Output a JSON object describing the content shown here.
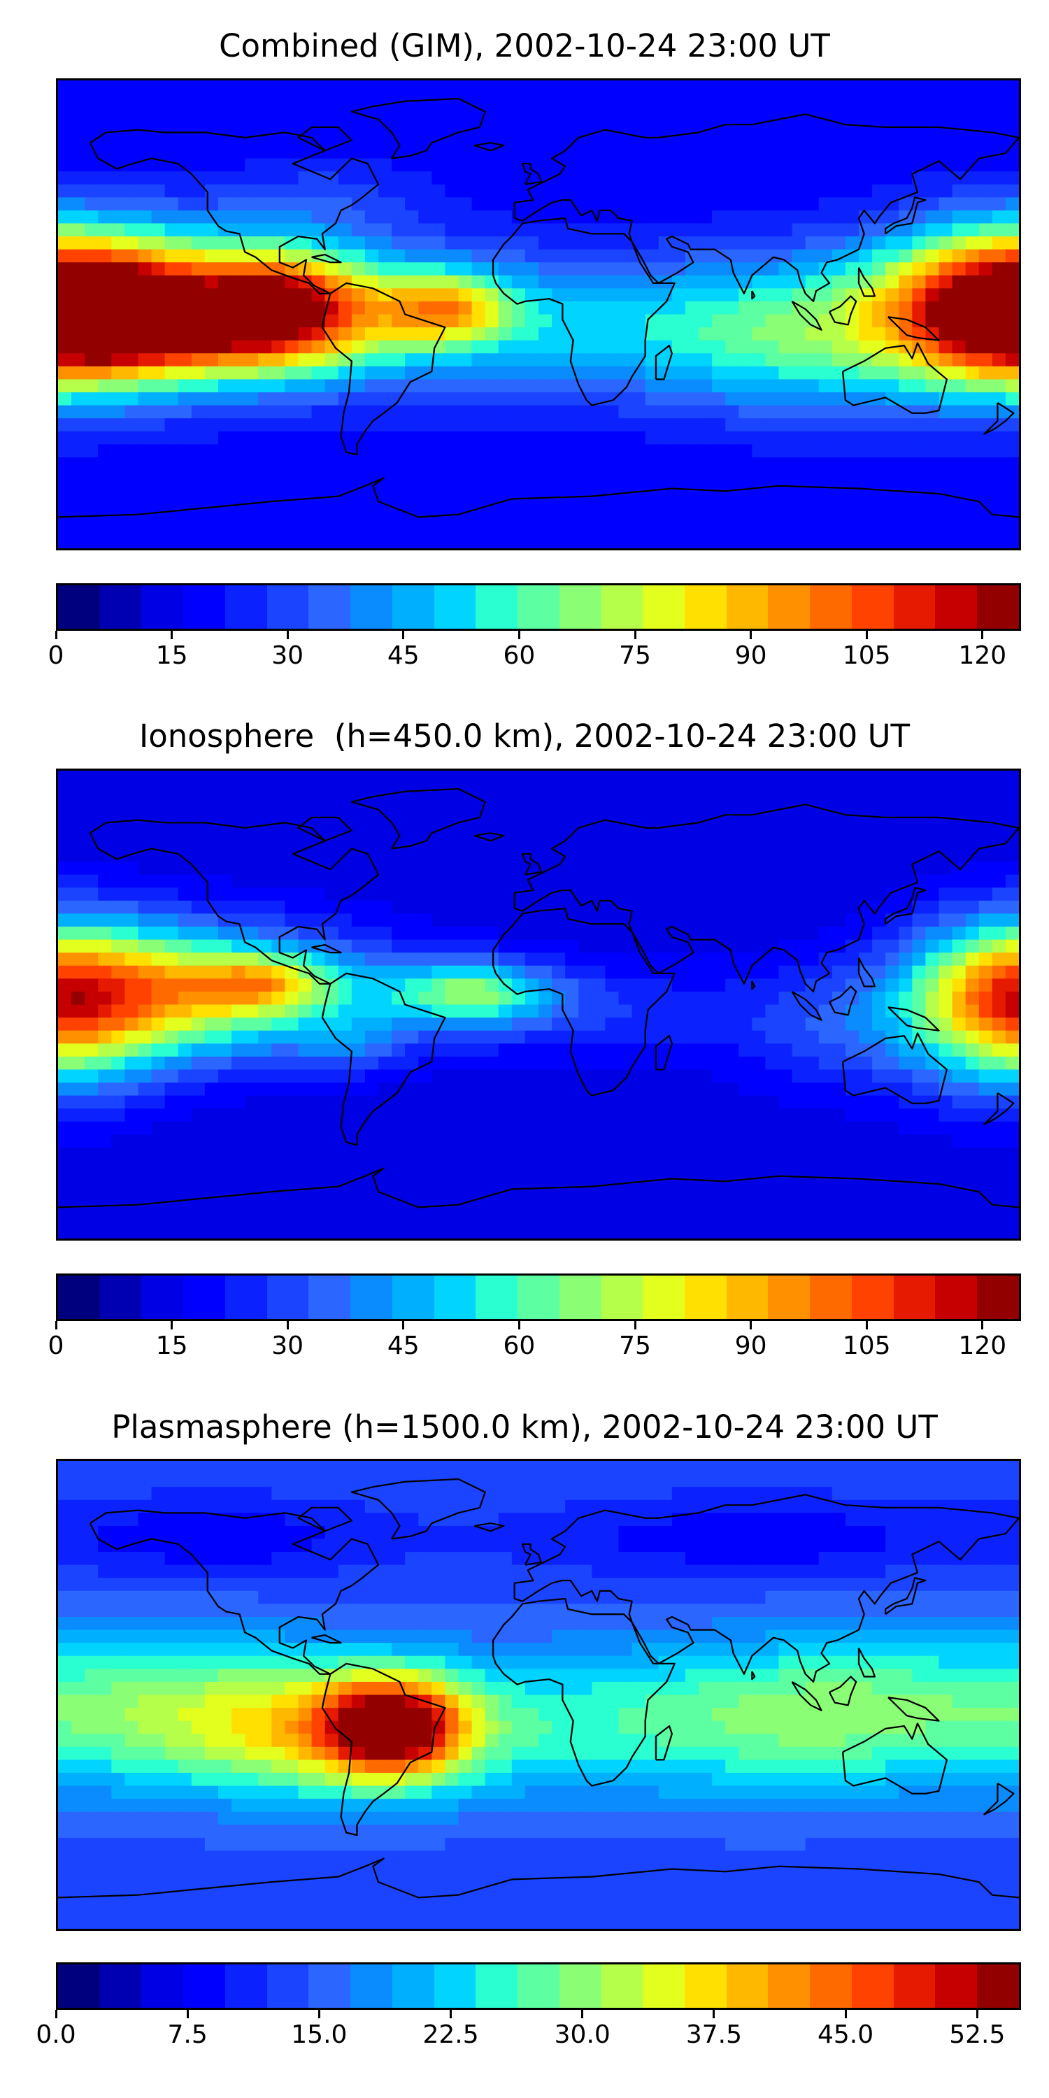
{
  "colormap": [
    "#00007f",
    "#0000b2",
    "#0000e5",
    "#0000ff",
    "#0b22ff",
    "#1a44ff",
    "#2a66ff",
    "#0a8cff",
    "#00b0ff",
    "#00d4ff",
    "#29ffd0",
    "#5cffa2",
    "#8aff75",
    "#b5ff4a",
    "#e3ff1d",
    "#ffe000",
    "#ffb800",
    "#ff9100",
    "#ff6a00",
    "#ff4200",
    "#e51a00",
    "#c60000",
    "#930000"
  ],
  "panels": [
    {
      "id": "combined",
      "title": "Combined (GIM), 2002-10-24 23:00 UT",
      "colorbar": {
        "min": 0,
        "max": 125,
        "ticks": [
          "0",
          "15",
          "30",
          "45",
          "60",
          "75",
          "90",
          "105",
          "120"
        ],
        "tick_values": [
          0,
          15,
          30,
          45,
          60,
          75,
          90,
          105,
          120
        ]
      },
      "base_level": 0.14,
      "blobs": [
        {
          "lon": -135,
          "lat": 2,
          "rlon": 80,
          "rlat": 28,
          "v": 0.62
        },
        {
          "lon": -95,
          "lat": 6,
          "rlon": 30,
          "rlat": 18,
          "v": 0.38
        },
        {
          "lon": -155,
          "lat": 0,
          "rlon": 25,
          "rlat": 16,
          "v": 0.28
        },
        {
          "lon": -110,
          "lat": -10,
          "rlon": 45,
          "rlat": 15,
          "v": 0.22
        },
        {
          "lon": -35,
          "lat": 2,
          "rlon": 25,
          "rlat": 14,
          "v": 0.38
        },
        {
          "lon": 175,
          "lat": 2,
          "rlon": 45,
          "rlat": 30,
          "v": 0.68
        },
        {
          "lon": 30,
          "lat": -5,
          "rlon": 90,
          "rlat": 28,
          "v": 0.25
        },
        {
          "lon": 100,
          "lat": -10,
          "rlon": 50,
          "rlat": 30,
          "v": 0.2
        },
        {
          "lon": -80,
          "lat": 45,
          "rlon": 40,
          "rlat": 15,
          "v": 0.08
        }
      ]
    },
    {
      "id": "ionosphere",
      "title": "Ionosphere  (h=450.0 km), 2002-10-24 23:00 UT",
      "colorbar": {
        "min": 0,
        "max": 125,
        "ticks": [
          "0",
          "15",
          "30",
          "45",
          "60",
          "75",
          "90",
          "105",
          "120"
        ],
        "tick_values": [
          0,
          15,
          30,
          45,
          60,
          75,
          90,
          105,
          120
        ]
      },
      "base_level": 0.1,
      "blobs": [
        {
          "lon": -130,
          "lat": 5,
          "rlon": 70,
          "rlat": 25,
          "v": 0.5
        },
        {
          "lon": -105,
          "lat": 8,
          "rlon": 25,
          "rlat": 10,
          "v": 0.25
        },
        {
          "lon": 178,
          "lat": 0,
          "rlon": 40,
          "rlat": 32,
          "v": 0.55
        },
        {
          "lon": -25,
          "lat": 5,
          "rlon": 30,
          "rlat": 12,
          "v": 0.32
        },
        {
          "lon": 10,
          "lat": -2,
          "rlon": 70,
          "rlat": 18,
          "v": 0.12
        },
        {
          "lon": 110,
          "lat": -10,
          "rlon": 40,
          "rlat": 25,
          "v": 0.12
        },
        {
          "lon": -70,
          "lat": -15,
          "rlon": 20,
          "rlat": 12,
          "v": 0.1
        }
      ]
    },
    {
      "id": "plasmasphere",
      "title": "Plasmasphere (h=1500.0 km), 2002-10-24 23:00 UT",
      "colorbar": {
        "min": 0,
        "max": 55,
        "ticks": [
          "0.0",
          "7.5",
          "15.0",
          "22.5",
          "30.0",
          "37.5",
          "45.0",
          "52.5"
        ],
        "tick_values": [
          0,
          7.5,
          15,
          22.5,
          30,
          37.5,
          45,
          52.5
        ]
      },
      "base_level": 0.24,
      "blobs": [
        {
          "lon": -55,
          "lat": -12,
          "rlon": 25,
          "rlat": 18,
          "v": 0.58
        },
        {
          "lon": -75,
          "lat": -15,
          "rlon": 60,
          "rlat": 25,
          "v": 0.3
        },
        {
          "lon": -140,
          "lat": -5,
          "rlon": 70,
          "rlat": 30,
          "v": 0.25
        },
        {
          "lon": 50,
          "lat": -10,
          "rlon": 100,
          "rlat": 30,
          "v": 0.22
        },
        {
          "lon": 120,
          "lat": -5,
          "rlon": 60,
          "rlat": 30,
          "v": 0.15
        },
        {
          "lon": -120,
          "lat": 60,
          "rlon": 60,
          "rlat": 15,
          "v": -0.1
        },
        {
          "lon": 80,
          "lat": 60,
          "rlon": 80,
          "rlat": 15,
          "v": -0.1
        }
      ]
    }
  ],
  "coastlines": {
    "north_america": [
      [
        -168,
        66
      ],
      [
        -162,
        70
      ],
      [
        -150,
        71
      ],
      [
        -140,
        70
      ],
      [
        -125,
        70
      ],
      [
        -110,
        68
      ],
      [
        -95,
        70
      ],
      [
        -85,
        68
      ],
      [
        -80,
        63
      ],
      [
        -92,
        58
      ],
      [
        -85,
        55
      ],
      [
        -78,
        52
      ],
      [
        -70,
        60
      ],
      [
        -64,
        58
      ],
      [
        -60,
        50
      ],
      [
        -66,
        45
      ],
      [
        -70,
        42
      ],
      [
        -74,
        40
      ],
      [
        -76,
        35
      ],
      [
        -81,
        31
      ],
      [
        -80,
        25
      ],
      [
        -83,
        29
      ],
      [
        -90,
        30
      ],
      [
        -97,
        26
      ],
      [
        -97,
        20
      ],
      [
        -92,
        18
      ],
      [
        -87,
        21
      ],
      [
        -88,
        15
      ],
      [
        -84,
        11
      ],
      [
        -80,
        9
      ],
      [
        -78,
        8
      ],
      [
        -82,
        8
      ],
      [
        -86,
        12
      ],
      [
        -92,
        14
      ],
      [
        -100,
        17
      ],
      [
        -106,
        22
      ],
      [
        -110,
        24
      ],
      [
        -112,
        31
      ],
      [
        -117,
        32
      ],
      [
        -120,
        34
      ],
      [
        -124,
        40
      ],
      [
        -124,
        47
      ],
      [
        -130,
        54
      ],
      [
        -135,
        58
      ],
      [
        -145,
        60
      ],
      [
        -152,
        58
      ],
      [
        -158,
        56
      ],
      [
        -165,
        60
      ],
      [
        -168,
        66
      ]
    ],
    "south_america": [
      [
        -78,
        8
      ],
      [
        -72,
        12
      ],
      [
        -62,
        10
      ],
      [
        -52,
        5
      ],
      [
        -50,
        0
      ],
      [
        -44,
        -2
      ],
      [
        -35,
        -5
      ],
      [
        -39,
        -13
      ],
      [
        -40,
        -22
      ],
      [
        -48,
        -26
      ],
      [
        -53,
        -34
      ],
      [
        -58,
        -38
      ],
      [
        -62,
        -41
      ],
      [
        -65,
        -45
      ],
      [
        -68,
        -50
      ],
      [
        -68,
        -54
      ],
      [
        -72,
        -53
      ],
      [
        -74,
        -47
      ],
      [
        -73,
        -38
      ],
      [
        -71,
        -30
      ],
      [
        -70,
        -18
      ],
      [
        -76,
        -13
      ],
      [
        -81,
        -5
      ],
      [
        -80,
        0
      ],
      [
        -78,
        8
      ]
    ],
    "greenland": [
      [
        -55,
        60
      ],
      [
        -48,
        61
      ],
      [
        -42,
        63
      ],
      [
        -40,
        66
      ],
      [
        -30,
        70
      ],
      [
        -22,
        72
      ],
      [
        -20,
        78
      ],
      [
        -30,
        83
      ],
      [
        -50,
        82
      ],
      [
        -62,
        80
      ],
      [
        -70,
        78
      ],
      [
        -60,
        75
      ],
      [
        -55,
        70
      ],
      [
        -52,
        65
      ],
      [
        -55,
        60
      ]
    ],
    "europe_asia": [
      [
        -9,
        37
      ],
      [
        -9,
        43
      ],
      [
        -2,
        44
      ],
      [
        -4,
        48
      ],
      [
        2,
        51
      ],
      [
        8,
        54
      ],
      [
        10,
        57
      ],
      [
        5,
        60
      ],
      [
        10,
        63
      ],
      [
        15,
        68
      ],
      [
        25,
        71
      ],
      [
        40,
        68
      ],
      [
        45,
        68
      ],
      [
        60,
        70
      ],
      [
        70,
        73
      ],
      [
        80,
        73
      ],
      [
        100,
        77
      ],
      [
        115,
        73
      ],
      [
        130,
        72
      ],
      [
        150,
        72
      ],
      [
        170,
        70
      ],
      [
        180,
        68
      ],
      [
        175,
        62
      ],
      [
        165,
        60
      ],
      [
        158,
        52
      ],
      [
        150,
        59
      ],
      [
        140,
        54
      ],
      [
        142,
        47
      ],
      [
        132,
        43
      ],
      [
        128,
        38
      ],
      [
        126,
        35
      ],
      [
        122,
        40
      ],
      [
        120,
        37
      ],
      [
        122,
        31
      ],
      [
        120,
        25
      ],
      [
        112,
        21
      ],
      [
        108,
        20
      ],
      [
        106,
        16
      ],
      [
        109,
        12
      ],
      [
        104,
        9
      ],
      [
        103,
        5
      ],
      [
        100,
        8
      ],
      [
        98,
        13
      ],
      [
        97,
        17
      ],
      [
        92,
        21
      ],
      [
        88,
        22
      ],
      [
        80,
        15
      ],
      [
        77,
        8
      ],
      [
        73,
        16
      ],
      [
        72,
        21
      ],
      [
        66,
        25
      ],
      [
        57,
        25
      ],
      [
        56,
        27
      ],
      [
        50,
        30
      ],
      [
        48,
        29
      ],
      [
        50,
        26
      ],
      [
        56,
        24
      ],
      [
        58,
        20
      ],
      [
        52,
        16
      ],
      [
        45,
        12
      ],
      [
        42,
        15
      ],
      [
        39,
        21
      ],
      [
        35,
        28
      ],
      [
        34,
        31
      ],
      [
        35,
        36
      ],
      [
        30,
        37
      ],
      [
        27,
        40
      ],
      [
        23,
        40
      ],
      [
        22,
        36
      ],
      [
        20,
        40
      ],
      [
        16,
        38
      ],
      [
        12,
        44
      ],
      [
        9,
        44
      ],
      [
        5,
        43
      ],
      [
        0,
        40
      ],
      [
        -6,
        36
      ],
      [
        -9,
        37
      ]
    ],
    "africa": [
      [
        -17,
        15
      ],
      [
        -17,
        21
      ],
      [
        -13,
        27
      ],
      [
        -10,
        30
      ],
      [
        -6,
        35
      ],
      [
        0,
        36
      ],
      [
        10,
        37
      ],
      [
        11,
        33
      ],
      [
        20,
        31
      ],
      [
        29,
        31
      ],
      [
        32,
        31
      ],
      [
        35,
        28
      ],
      [
        38,
        20
      ],
      [
        43,
        12
      ],
      [
        51,
        12
      ],
      [
        48,
        5
      ],
      [
        41,
        -2
      ],
      [
        40,
        -10
      ],
      [
        40,
        -16
      ],
      [
        35,
        -24
      ],
      [
        33,
        -28
      ],
      [
        28,
        -33
      ],
      [
        20,
        -35
      ],
      [
        18,
        -33
      ],
      [
        15,
        -27
      ],
      [
        12,
        -18
      ],
      [
        13,
        -10
      ],
      [
        9,
        -2
      ],
      [
        9,
        4
      ],
      [
        4,
        6
      ],
      [
        -5,
        5
      ],
      [
        -8,
        4
      ],
      [
        -13,
        8
      ],
      [
        -16,
        12
      ],
      [
        -17,
        15
      ]
    ],
    "australia": [
      [
        114,
        -22
      ],
      [
        122,
        -18
      ],
      [
        130,
        -13
      ],
      [
        137,
        -12
      ],
      [
        140,
        -17
      ],
      [
        142,
        -11
      ],
      [
        146,
        -19
      ],
      [
        153,
        -25
      ],
      [
        150,
        -37
      ],
      [
        145,
        -38
      ],
      [
        140,
        -38
      ],
      [
        135,
        -35
      ],
      [
        130,
        -32
      ],
      [
        118,
        -35
      ],
      [
        115,
        -33
      ],
      [
        114,
        -22
      ]
    ],
    "antarctica": [
      [
        -180,
        -78
      ],
      [
        -150,
        -77
      ],
      [
        -120,
        -74
      ],
      [
        -100,
        -72
      ],
      [
        -75,
        -70
      ],
      [
        -65,
        -66
      ],
      [
        -58,
        -63
      ],
      [
        -62,
        -66
      ],
      [
        -60,
        -72
      ],
      [
        -45,
        -78
      ],
      [
        -30,
        -77
      ],
      [
        -10,
        -71
      ],
      [
        20,
        -70
      ],
      [
        50,
        -67
      ],
      [
        70,
        -68
      ],
      [
        90,
        -66
      ],
      [
        120,
        -67
      ],
      [
        150,
        -69
      ],
      [
        165,
        -72
      ],
      [
        170,
        -77
      ],
      [
        180,
        -78
      ]
    ],
    "uk": [
      [
        -5,
        50
      ],
      [
        1,
        51
      ],
      [
        0,
        54
      ],
      [
        -3,
        56
      ],
      [
        -3,
        58
      ],
      [
        -6,
        58
      ],
      [
        -5,
        55
      ],
      [
        -3,
        54
      ],
      [
        -5,
        50
      ]
    ],
    "japan": [
      [
        130,
        31
      ],
      [
        134,
        34
      ],
      [
        140,
        35
      ],
      [
        141,
        39
      ],
      [
        142,
        43
      ],
      [
        145,
        44
      ],
      [
        141,
        45
      ],
      [
        140,
        41
      ],
      [
        138,
        37
      ],
      [
        133,
        35
      ],
      [
        130,
        33
      ],
      [
        130,
        31
      ]
    ],
    "madagascar": [
      [
        44,
        -25
      ],
      [
        47,
        -25
      ],
      [
        50,
        -15
      ],
      [
        49,
        -12
      ],
      [
        44,
        -16
      ],
      [
        44,
        -25
      ]
    ],
    "borneo": [
      [
        109,
        1
      ],
      [
        113,
        3
      ],
      [
        117,
        7
      ],
      [
        119,
        5
      ],
      [
        117,
        0
      ],
      [
        116,
        -4
      ],
      [
        111,
        -3
      ],
      [
        109,
        1
      ]
    ],
    "sumatra": [
      [
        95,
        5
      ],
      [
        100,
        2
      ],
      [
        104,
        -2
      ],
      [
        106,
        -6
      ],
      [
        102,
        -4
      ],
      [
        98,
        0
      ],
      [
        95,
        5
      ]
    ],
    "new_guinea": [
      [
        131,
        -1
      ],
      [
        138,
        -2
      ],
      [
        145,
        -5
      ],
      [
        150,
        -10
      ],
      [
        142,
        -9
      ],
      [
        138,
        -8
      ],
      [
        131,
        -1
      ]
    ],
    "new_zealand": [
      [
        172,
        -34
      ],
      [
        178,
        -38
      ],
      [
        175,
        -41
      ],
      [
        171,
        -44
      ],
      [
        167,
        -46
      ],
      [
        172,
        -41
      ],
      [
        172,
        -34
      ]
    ],
    "cuba": [
      [
        -85,
        22
      ],
      [
        -80,
        23
      ],
      [
        -74,
        20
      ],
      [
        -78,
        20
      ],
      [
        -85,
        22
      ]
    ],
    "iceland": [
      [
        -24,
        65
      ],
      [
        -18,
        66
      ],
      [
        -13,
        65
      ],
      [
        -18,
        63
      ],
      [
        -24,
        65
      ]
    ],
    "philippines": [
      [
        120,
        18
      ],
      [
        122,
        14
      ],
      [
        125,
        10
      ],
      [
        126,
        7
      ],
      [
        122,
        7
      ],
      [
        120,
        12
      ],
      [
        120,
        18
      ]
    ],
    "sri_lanka": [
      [
        80,
        9
      ],
      [
        81,
        7
      ],
      [
        80,
        6
      ],
      [
        80,
        9
      ]
    ],
    "baffin": [
      [
        -80,
        63
      ],
      [
        -70,
        67
      ],
      [
        -75,
        72
      ],
      [
        -85,
        72
      ],
      [
        -90,
        68
      ],
      [
        -80,
        63
      ]
    ]
  }
}
